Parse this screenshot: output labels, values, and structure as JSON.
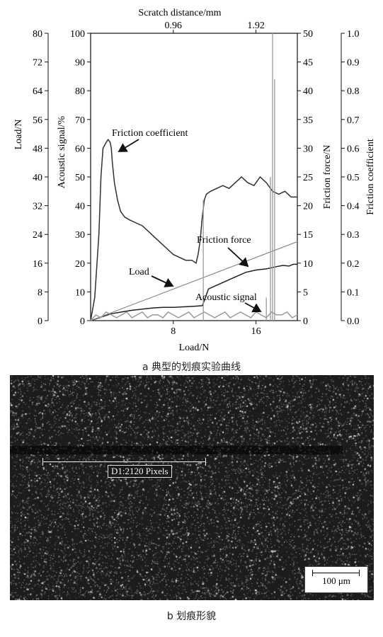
{
  "chart_data": {
    "type": "line",
    "top_axis": {
      "label": "Scratch distance/mm",
      "ticks": [
        "0.96",
        "1.92"
      ],
      "tick_at_load": [
        8,
        16
      ]
    },
    "x": {
      "label": "Load/N",
      "lim": [
        0,
        20
      ],
      "ticks": [
        8,
        16
      ]
    },
    "left_axes": [
      {
        "id": "load",
        "label": "Load/N",
        "lim": [
          0,
          80
        ],
        "ticks": [
          0,
          8,
          16,
          24,
          32,
          40,
          48,
          56,
          64,
          72,
          80
        ]
      },
      {
        "id": "acoustic",
        "label": "Acoustic signal/%",
        "lim": [
          0,
          100
        ],
        "ticks": [
          0,
          10,
          20,
          30,
          40,
          50,
          60,
          70,
          80,
          90,
          100
        ]
      }
    ],
    "right_axes": [
      {
        "id": "friction_force",
        "label": "Friction force/N",
        "lim": [
          0,
          50
        ],
        "ticks": [
          0,
          5,
          10,
          15,
          20,
          25,
          30,
          35,
          40,
          45,
          50
        ]
      },
      {
        "id": "friction_coefficient",
        "label": "Friction coefficient",
        "lim": [
          0,
          1.0
        ],
        "ticks": [
          "0.0",
          "0.1",
          "0.2",
          "0.3",
          "0.4",
          "0.5",
          "0.6",
          "0.7",
          "0.8",
          "0.9",
          "1.0"
        ]
      }
    ],
    "series": [
      {
        "name": "Friction coefficient",
        "axis": "friction_coefficient",
        "color": "#303030",
        "x": [
          0,
          0.4,
          0.8,
          1.0,
          1.2,
          1.5,
          1.7,
          1.9,
          2.0,
          2.1,
          2.3,
          2.6,
          2.9,
          3.3,
          3.8,
          4.4,
          5.0,
          5.6,
          6.2,
          6.8,
          7.4,
          8.0,
          8.6,
          9.2,
          9.8,
          10.2,
          10.4,
          10.6,
          10.8,
          11.0,
          11.2,
          11.6,
          12.2,
          12.8,
          13.4,
          14.0,
          14.6,
          15.2,
          15.8,
          16.4,
          17.0,
          17.6,
          18.2,
          18.8,
          19.4,
          20.0
        ],
        "values": [
          0,
          0.08,
          0.3,
          0.5,
          0.6,
          0.62,
          0.63,
          0.62,
          0.6,
          0.55,
          0.48,
          0.42,
          0.38,
          0.36,
          0.35,
          0.34,
          0.33,
          0.31,
          0.29,
          0.27,
          0.25,
          0.23,
          0.22,
          0.21,
          0.21,
          0.2,
          0.23,
          0.28,
          0.36,
          0.42,
          0.44,
          0.45,
          0.46,
          0.47,
          0.46,
          0.48,
          0.5,
          0.48,
          0.47,
          0.5,
          0.48,
          0.45,
          0.44,
          0.45,
          0.43,
          0.43
        ]
      },
      {
        "name": "Friction force",
        "axis": "friction_force",
        "color": "#202020",
        "x": [
          0,
          1,
          2,
          3,
          4,
          5,
          6,
          7,
          8,
          9,
          10,
          10.8,
          11.0,
          11.4,
          12,
          13,
          14,
          15,
          16,
          17,
          18,
          18.6,
          19.2,
          19.6,
          20
        ],
        "values": [
          0,
          0.6,
          1.2,
          1.5,
          1.8,
          2.0,
          2.2,
          2.3,
          2.3,
          2.4,
          2.5,
          2.6,
          3.5,
          5.5,
          6.0,
          6.8,
          7.6,
          8.4,
          8.8,
          9.0,
          9.4,
          9.6,
          9.5,
          9.8,
          9.8
        ]
      },
      {
        "name": "Load",
        "axis": "load",
        "color": "#8a8a8a",
        "x": [
          0,
          20
        ],
        "values": [
          0,
          22
        ]
      },
      {
        "name": "Acoustic signal",
        "axis": "acoustic",
        "color": "#9a9a9a",
        "x": [
          0,
          0.5,
          1,
          1.5,
          2,
          2.5,
          3,
          3.5,
          4,
          4.5,
          5,
          5.5,
          6,
          6.5,
          7,
          7.5,
          8,
          8.5,
          9,
          9.5,
          10,
          10.5,
          11,
          11.5,
          12,
          12.5,
          13,
          13.5,
          14,
          14.5,
          15,
          15.5,
          16,
          16.5,
          17,
          17.5,
          18,
          18.5,
          19,
          19.5,
          20
        ],
        "values": [
          0,
          2,
          1,
          3,
          2,
          1,
          2,
          3,
          1,
          2,
          3,
          1,
          2,
          2,
          1,
          3,
          2,
          1,
          2,
          3,
          1,
          2,
          3,
          2,
          1,
          2,
          3,
          1,
          2,
          3,
          2,
          1,
          3,
          2,
          1,
          3,
          2,
          2,
          3,
          1,
          2
        ]
      }
    ],
    "spikes": [
      {
        "axis": "acoustic",
        "color": "#9a9a9a",
        "x": 10.9,
        "value": 42
      },
      {
        "axis": "acoustic",
        "color": "#9a9a9a",
        "x": 17.4,
        "value": 50
      },
      {
        "axis": "acoustic",
        "color": "#9a9a9a",
        "x": 17.6,
        "value": 100
      },
      {
        "axis": "acoustic",
        "color": "#9a9a9a",
        "x": 17.8,
        "value": 84
      },
      {
        "axis": "acoustic",
        "color": "#9a9a9a",
        "x": 17.0,
        "value": 8
      }
    ],
    "annotations": [
      {
        "text": "Friction coefficient",
        "target": "Friction coefficient",
        "at_x": 1.8
      },
      {
        "text": "Friction force",
        "target": "Friction force",
        "at_x": 15.2
      },
      {
        "text": "Load",
        "target": "Load",
        "at_x": 8.0
      },
      {
        "text": "Acoustic signal",
        "target": "Acoustic signal",
        "at_x": 16.7
      }
    ],
    "grid": false,
    "caption": "a 典型的划痕实验曲线"
  },
  "micrograph": {
    "measurement_label": "D1:2120 Pixels",
    "scale_bar_label": "100 μm",
    "caption": "b 划痕形貌"
  }
}
